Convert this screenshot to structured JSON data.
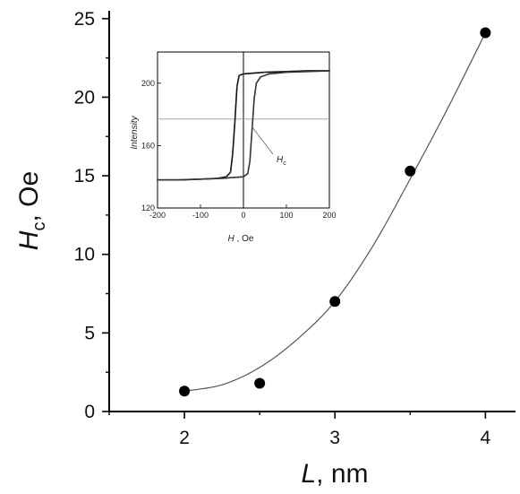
{
  "chart_data": [
    {
      "type": "scatter",
      "title": "",
      "xlabel": "L, nm",
      "ylabel": "Hc, Oe",
      "xlabel_parts": {
        "symbol": "L",
        "rest": ", nm"
      },
      "ylabel_parts": {
        "symbol": "H",
        "sub": "c",
        "rest": ", Oe"
      },
      "xlim": [
        1.5,
        4.2
      ],
      "ylim": [
        0,
        25.5
      ],
      "xticks": [
        2,
        3,
        4
      ],
      "xtick_labels": [
        "2",
        "3",
        "4"
      ],
      "yticks": [
        0,
        5,
        10,
        15,
        20,
        25
      ],
      "ytick_labels": [
        "0",
        "5",
        "10",
        "15",
        "20",
        "25"
      ],
      "series": [
        {
          "x": [
            2.0,
            2.5,
            3.0,
            3.5,
            4.0
          ],
          "y": [
            1.3,
            1.8,
            7.0,
            15.3,
            24.1
          ]
        }
      ],
      "fit_curve": {
        "x": [
          2.0,
          2.25,
          2.5,
          2.75,
          3.0,
          3.25,
          3.5,
          3.75,
          4.0
        ],
        "y": [
          1.3,
          1.7,
          2.8,
          4.6,
          7.0,
          10.5,
          14.8,
          19.3,
          24.1
        ]
      },
      "grid": false,
      "legend": "none"
    },
    {
      "type": "line",
      "title": "",
      "xlabel": "H, Oe",
      "ylabel": "Intensity",
      "xlabel_parts": {
        "symbol": "H",
        "rest": " , Oe"
      },
      "xlim": [
        -200,
        200
      ],
      "ylim": [
        120,
        220
      ],
      "xticks": [
        -200,
        -100,
        0,
        100,
        200
      ],
      "xtick_labels": [
        "-200",
        "-100",
        "0",
        "100",
        "200"
      ],
      "yticks": [
        120,
        160,
        200
      ],
      "ytick_labels": [
        "120",
        "160",
        "200"
      ],
      "reference_lines": {
        "x": 0,
        "y": 177
      },
      "annotation": {
        "symbol": "H",
        "sub": "c"
      },
      "series": [
        {
          "x": [
            -200,
            -150,
            -100,
            -60,
            -40,
            -30,
            -25,
            -20,
            -15,
            -10,
            0,
            50,
            100,
            150,
            200
          ],
          "y": [
            138,
            138,
            138.5,
            139,
            140,
            143,
            155,
            175,
            198,
            205,
            206,
            207,
            207.5,
            208,
            208
          ]
        },
        {
          "x": [
            200,
            150,
            100,
            60,
            40,
            30,
            25,
            20,
            15,
            10,
            0,
            -50,
            -100,
            -150,
            -200
          ],
          "y": [
            208,
            207.5,
            207,
            206,
            204,
            200,
            190,
            170,
            150,
            142,
            140,
            139,
            138.5,
            138,
            138
          ]
        }
      ],
      "grid": false,
      "legend": "none"
    }
  ]
}
